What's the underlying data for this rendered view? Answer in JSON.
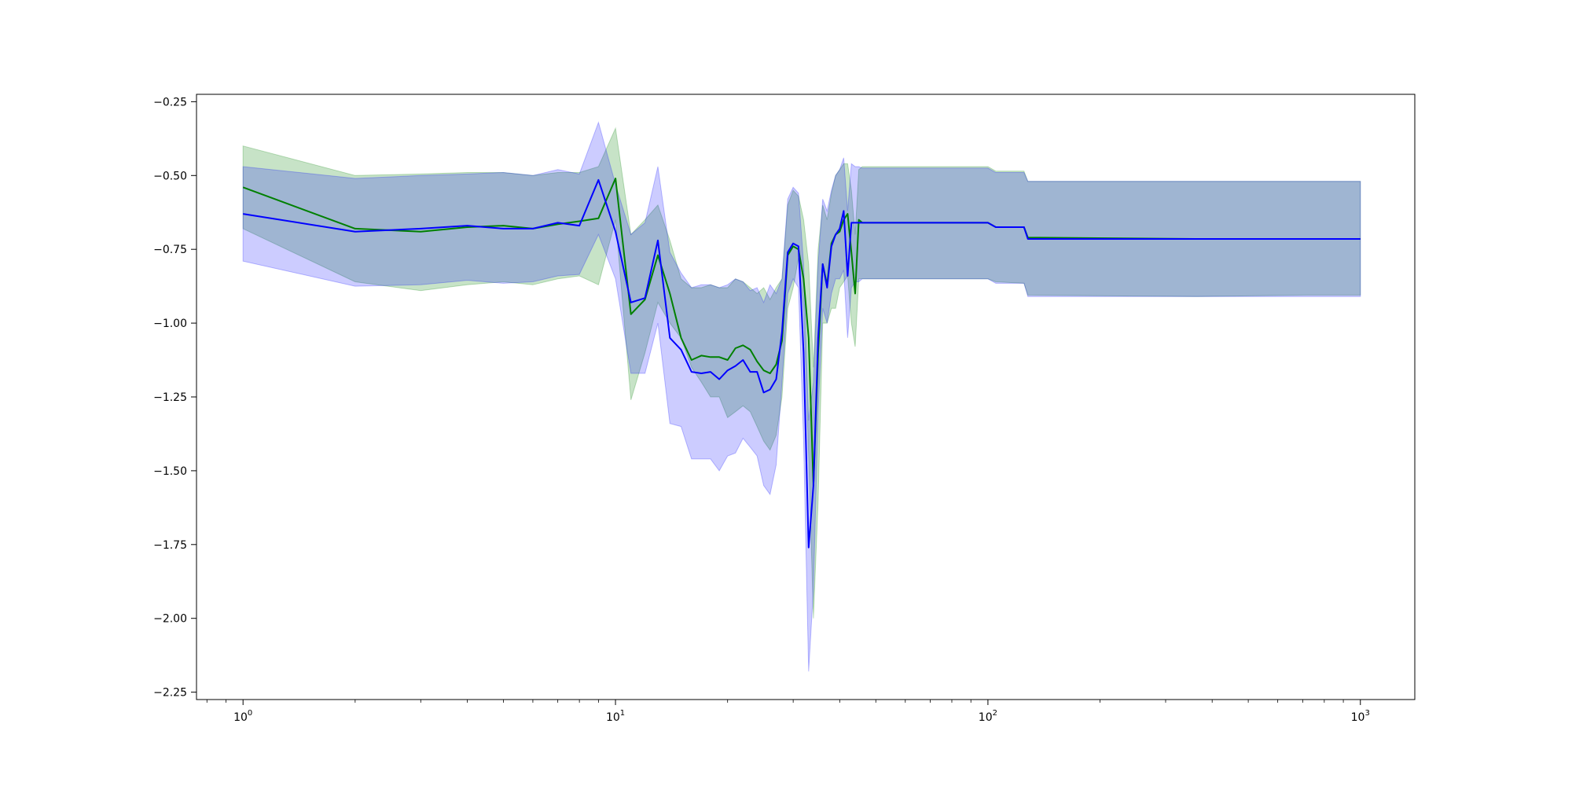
{
  "chart_data": {
    "type": "line",
    "title": "",
    "xlabel": "",
    "ylabel": "",
    "xscale": "log",
    "xlim": [
      0.75,
      1400
    ],
    "ylim": [
      -2.275,
      -0.225
    ],
    "grid": false,
    "legend": "none",
    "xticks": [
      {
        "base": "10",
        "exp": "0",
        "value": 1
      },
      {
        "base": "10",
        "exp": "1",
        "value": 10
      },
      {
        "base": "10",
        "exp": "2",
        "value": 100
      },
      {
        "base": "10",
        "exp": "3",
        "value": 1000
      }
    ],
    "yticks": [
      {
        "label": "−0.25",
        "value": -0.25
      },
      {
        "label": "−0.50",
        "value": -0.5
      },
      {
        "label": "−0.75",
        "value": -0.75
      },
      {
        "label": "−1.00",
        "value": -1.0
      },
      {
        "label": "−1.25",
        "value": -1.25
      },
      {
        "label": "−1.50",
        "value": -1.5
      },
      {
        "label": "−1.75",
        "value": -1.75
      },
      {
        "label": "−2.00",
        "value": -2.0
      },
      {
        "label": "−2.25",
        "value": -2.25
      }
    ],
    "series": [
      {
        "color": "#008000",
        "band_color": "#008000",
        "band_opacity": 0.22,
        "x": [
          1,
          2,
          3,
          4,
          5,
          6,
          7,
          8,
          9,
          10,
          11,
          12,
          13,
          14,
          15,
          16,
          17,
          18,
          19,
          20,
          21,
          22,
          23,
          24,
          25,
          26,
          27,
          28,
          29,
          30,
          31,
          32,
          33,
          34,
          35,
          36,
          37,
          38,
          39,
          40,
          41,
          42,
          43,
          44,
          45,
          46,
          100,
          105,
          125,
          128,
          360,
          720,
          1000
        ],
        "y": [
          -0.54,
          -0.68,
          -0.69,
          -0.675,
          -0.67,
          -0.68,
          -0.665,
          -0.655,
          -0.645,
          -0.51,
          -0.97,
          -0.92,
          -0.77,
          -0.9,
          -1.05,
          -1.125,
          -1.11,
          -1.115,
          -1.115,
          -1.125,
          -1.085,
          -1.075,
          -1.09,
          -1.13,
          -1.16,
          -1.17,
          -1.14,
          -1.06,
          -0.77,
          -0.74,
          -0.75,
          -0.85,
          -1.05,
          -1.55,
          -1.1,
          -0.8,
          -0.87,
          -0.73,
          -0.7,
          -0.69,
          -0.65,
          -0.63,
          -0.76,
          -0.9,
          -0.65,
          -0.66,
          -0.66,
          -0.675,
          -0.675,
          -0.71,
          -0.715,
          -0.715,
          -0.715
        ],
        "lower": [
          -0.68,
          -0.86,
          -0.89,
          -0.87,
          -0.86,
          -0.87,
          -0.85,
          -0.84,
          -0.87,
          -0.65,
          -1.26,
          -1.1,
          -0.93,
          -1.0,
          -1.05,
          -1.15,
          -1.2,
          -1.25,
          -1.25,
          -1.32,
          -1.3,
          -1.28,
          -1.3,
          -1.35,
          -1.4,
          -1.43,
          -1.38,
          -1.25,
          -0.95,
          -0.88,
          -0.78,
          -0.95,
          -1.45,
          -2.0,
          -1.6,
          -1.0,
          -1.0,
          -0.95,
          -0.95,
          -0.88,
          -0.86,
          -0.84,
          -1.0,
          -1.08,
          -0.85,
          -0.85,
          -0.85,
          -0.86,
          -0.865,
          -0.905,
          -0.91,
          -0.905,
          -0.905
        ],
        "upper": [
          -0.4,
          -0.5,
          -0.495,
          -0.49,
          -0.49,
          -0.5,
          -0.49,
          -0.49,
          -0.47,
          -0.34,
          -0.7,
          -0.65,
          -0.6,
          -0.72,
          -0.85,
          -0.88,
          -0.88,
          -0.87,
          -0.88,
          -0.88,
          -0.85,
          -0.86,
          -0.88,
          -0.9,
          -0.88,
          -0.92,
          -0.88,
          -0.85,
          -0.6,
          -0.55,
          -0.57,
          -0.65,
          -0.8,
          -1.15,
          -0.75,
          -0.6,
          -0.65,
          -0.56,
          -0.5,
          -0.48,
          -0.46,
          -0.46,
          -0.55,
          -0.7,
          -0.48,
          -0.47,
          -0.47,
          -0.485,
          -0.485,
          -0.52,
          -0.52,
          -0.52,
          -0.52
        ]
      },
      {
        "color": "#0000ff",
        "band_color": "#0000ff",
        "band_opacity": 0.2,
        "x": [
          1,
          2,
          3,
          4,
          5,
          6,
          7,
          8,
          9,
          10,
          11,
          12,
          13,
          14,
          15,
          16,
          17,
          18,
          19,
          20,
          21,
          22,
          23,
          24,
          25,
          26,
          27,
          28,
          29,
          30,
          31,
          32,
          33,
          34,
          35,
          36,
          37,
          38,
          39,
          40,
          41,
          42,
          43,
          44,
          45,
          46,
          100,
          105,
          125,
          128,
          360,
          720,
          1000
        ],
        "y": [
          -0.63,
          -0.69,
          -0.68,
          -0.67,
          -0.68,
          -0.68,
          -0.66,
          -0.67,
          -0.515,
          -0.69,
          -0.93,
          -0.915,
          -0.72,
          -1.05,
          -1.09,
          -1.165,
          -1.17,
          -1.165,
          -1.19,
          -1.16,
          -1.145,
          -1.125,
          -1.165,
          -1.165,
          -1.235,
          -1.225,
          -1.19,
          -1.03,
          -0.76,
          -0.73,
          -0.74,
          -1.1,
          -1.76,
          -1.55,
          -1.05,
          -0.8,
          -0.88,
          -0.74,
          -0.7,
          -0.68,
          -0.62,
          -0.84,
          -0.66,
          -0.66,
          -0.66,
          -0.66,
          -0.66,
          -0.675,
          -0.675,
          -0.715,
          -0.715,
          -0.715,
          -0.715
        ],
        "lower": [
          -0.79,
          -0.875,
          -0.87,
          -0.855,
          -0.865,
          -0.86,
          -0.84,
          -0.835,
          -0.7,
          -0.85,
          -1.17,
          -1.17,
          -1.0,
          -1.34,
          -1.35,
          -1.46,
          -1.46,
          -1.46,
          -1.5,
          -1.45,
          -1.44,
          -1.39,
          -1.42,
          -1.45,
          -1.55,
          -1.58,
          -1.48,
          -1.2,
          -0.9,
          -0.85,
          -0.88,
          -1.4,
          -2.18,
          -1.9,
          -1.3,
          -0.95,
          -1.0,
          -0.9,
          -0.85,
          -0.85,
          -0.82,
          -1.05,
          -0.88,
          -0.86,
          -0.86,
          -0.85,
          -0.85,
          -0.865,
          -0.865,
          -0.91,
          -0.91,
          -0.91,
          -0.91
        ],
        "upper": [
          -0.47,
          -0.51,
          -0.5,
          -0.495,
          -0.49,
          -0.5,
          -0.48,
          -0.495,
          -0.32,
          -0.53,
          -0.7,
          -0.66,
          -0.47,
          -0.76,
          -0.83,
          -0.88,
          -0.87,
          -0.87,
          -0.88,
          -0.87,
          -0.85,
          -0.86,
          -0.89,
          -0.88,
          -0.93,
          -0.87,
          -0.9,
          -0.85,
          -0.58,
          -0.54,
          -0.56,
          -0.8,
          -1.33,
          -1.2,
          -0.8,
          -0.58,
          -0.62,
          -0.55,
          -0.5,
          -0.48,
          -0.44,
          -0.62,
          -0.46,
          -0.47,
          -0.47,
          -0.475,
          -0.475,
          -0.49,
          -0.49,
          -0.52,
          -0.52,
          -0.52,
          -0.52
        ]
      }
    ]
  }
}
